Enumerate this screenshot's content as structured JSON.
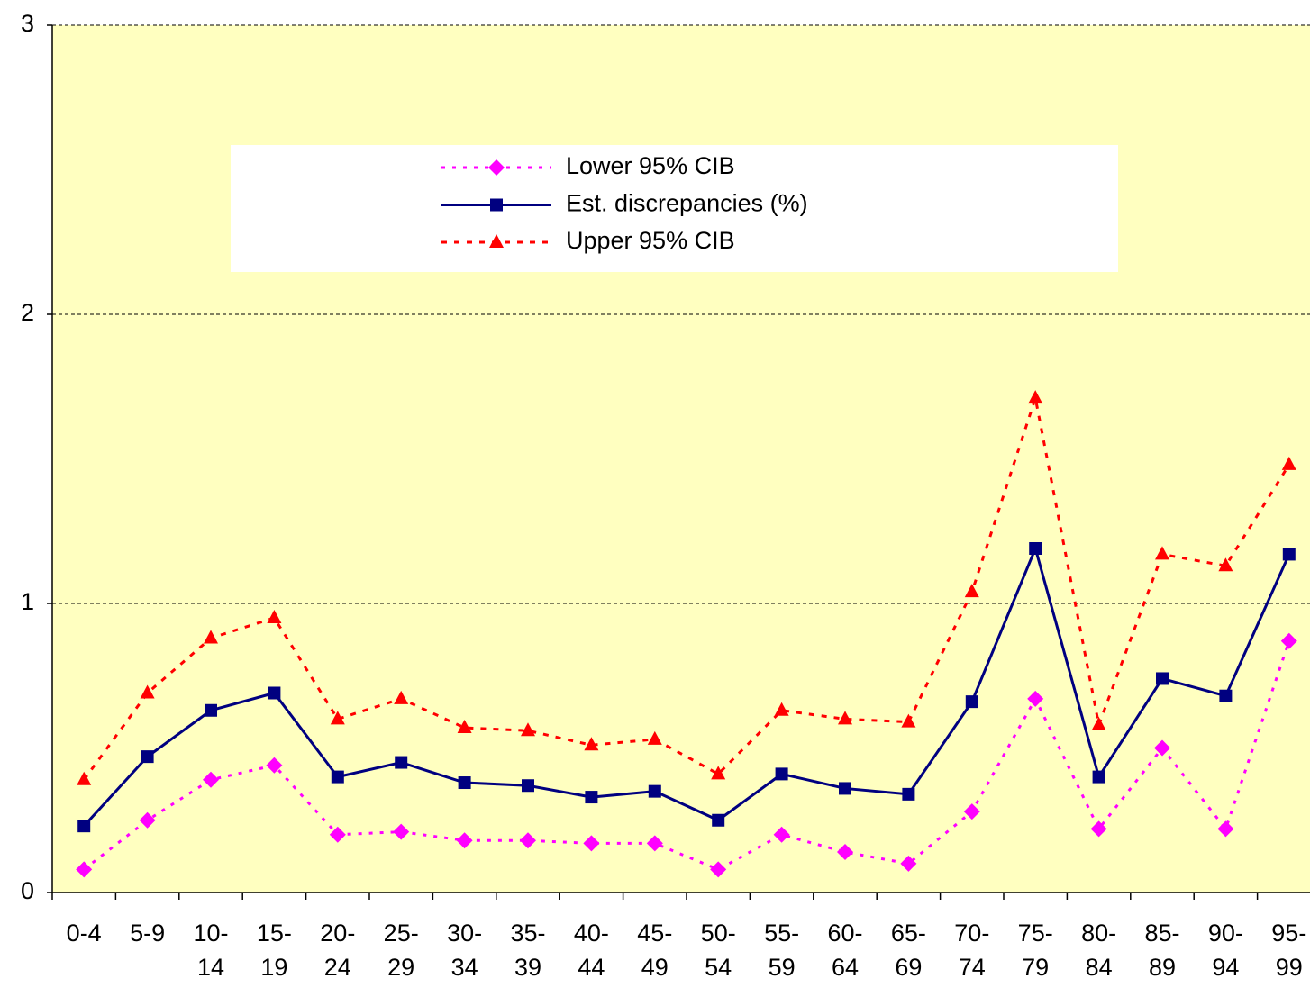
{
  "chart_data": {
    "type": "line",
    "categories": [
      "0-4",
      "5-9",
      "10-\n14",
      "15-\n19",
      "20-\n24",
      "25-\n29",
      "30-\n34",
      "35-\n39",
      "40-\n44",
      "45-\n49",
      "50-\n54",
      "55-\n59",
      "60-\n64",
      "65-\n69",
      "70-\n74",
      "75-\n79",
      "80-\n84",
      "85-\n89",
      "90-\n94",
      "95-\n99"
    ],
    "series": [
      {
        "name": "Lower 95% CIB",
        "color": "#ff00ff",
        "marker": "diamond",
        "dash": "4 8",
        "values": [
          0.08,
          0.25,
          0.39,
          0.44,
          0.2,
          0.21,
          0.18,
          0.18,
          0.17,
          0.17,
          0.08,
          0.2,
          0.14,
          0.1,
          0.28,
          0.67,
          0.22,
          0.5,
          0.22,
          0.87
        ]
      },
      {
        "name": "Est. discrepancies (%)",
        "color": "#000080",
        "marker": "square",
        "dash": "none",
        "values": [
          0.23,
          0.47,
          0.63,
          0.69,
          0.4,
          0.45,
          0.38,
          0.37,
          0.33,
          0.35,
          0.25,
          0.41,
          0.36,
          0.34,
          0.66,
          1.19,
          0.4,
          0.74,
          0.68,
          1.17
        ]
      },
      {
        "name": "Upper 95% CIB",
        "color": "#ff0000",
        "marker": "triangle",
        "dash": "6 8",
        "values": [
          0.39,
          0.69,
          0.88,
          0.95,
          0.6,
          0.67,
          0.57,
          0.56,
          0.51,
          0.53,
          0.41,
          0.63,
          0.6,
          0.59,
          1.04,
          1.71,
          0.58,
          1.17,
          1.13,
          1.48
        ]
      }
    ],
    "ylim": [
      0,
      3
    ],
    "yticks": [
      0,
      1,
      2,
      3
    ],
    "grid": true,
    "background": "#ffffc0"
  }
}
